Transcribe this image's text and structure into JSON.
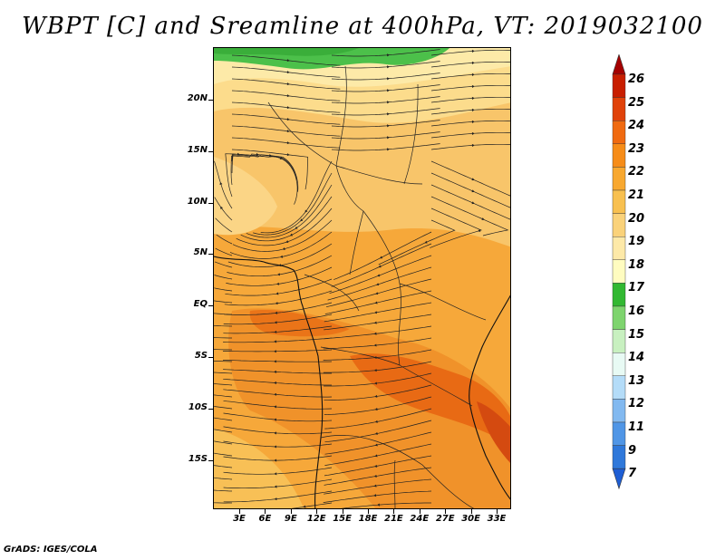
{
  "title": "WBPT [C] and Sreamline at 400hPa, VT: 2019032100",
  "credit": "GrADS: IGES/COLA",
  "map": {
    "latitude_labels": [
      "20N",
      "15N",
      "10N",
      "5N",
      "EQ",
      "5S",
      "10S",
      "15S"
    ],
    "longitude_labels": [
      "3E",
      "6E",
      "9E",
      "12E",
      "15E",
      "18E",
      "21E",
      "24E",
      "27E",
      "30E",
      "33E"
    ],
    "background_color": "#f8c56a"
  },
  "colorbar": {
    "labels": [
      "26",
      "25",
      "24",
      "23",
      "22",
      "21",
      "20",
      "19",
      "18",
      "17",
      "16",
      "15",
      "14",
      "13",
      "12",
      "11",
      "9",
      "7"
    ],
    "colors": [
      "#a50000",
      "#c81e00",
      "#e0420a",
      "#f06a10",
      "#f68c18",
      "#f8a830",
      "#f8c050",
      "#fad27a",
      "#fde9a8",
      "#fffcc0",
      "#32b832",
      "#7ed46e",
      "#c8f0c0",
      "#e8faf4",
      "#b4dcf8",
      "#82b9f0",
      "#5096e6",
      "#2f78da",
      "#1e5ed4"
    ]
  }
}
